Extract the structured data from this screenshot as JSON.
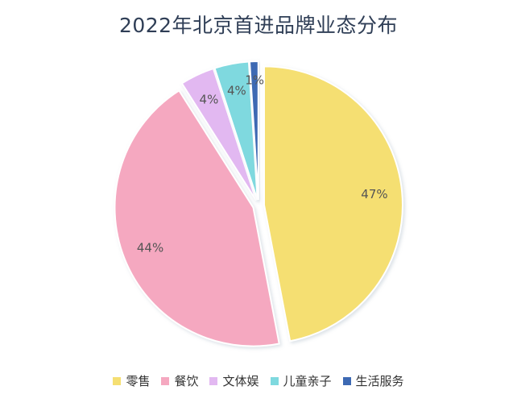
{
  "chart_data": {
    "type": "pie",
    "title": "2022年北京首进品牌业态分布",
    "categories": [
      "零售",
      "餐饮",
      "文体娱",
      "儿童亲子",
      "生活服务"
    ],
    "values": [
      47,
      44,
      4,
      4,
      1
    ],
    "labels": [
      "47%",
      "44%",
      "4%",
      "4%",
      "1%"
    ],
    "colors": [
      "#f5df72",
      "#f5a8c0",
      "#e2b8f1",
      "#7fd9df",
      "#3d69b3"
    ],
    "legend_position": "bottom"
  }
}
